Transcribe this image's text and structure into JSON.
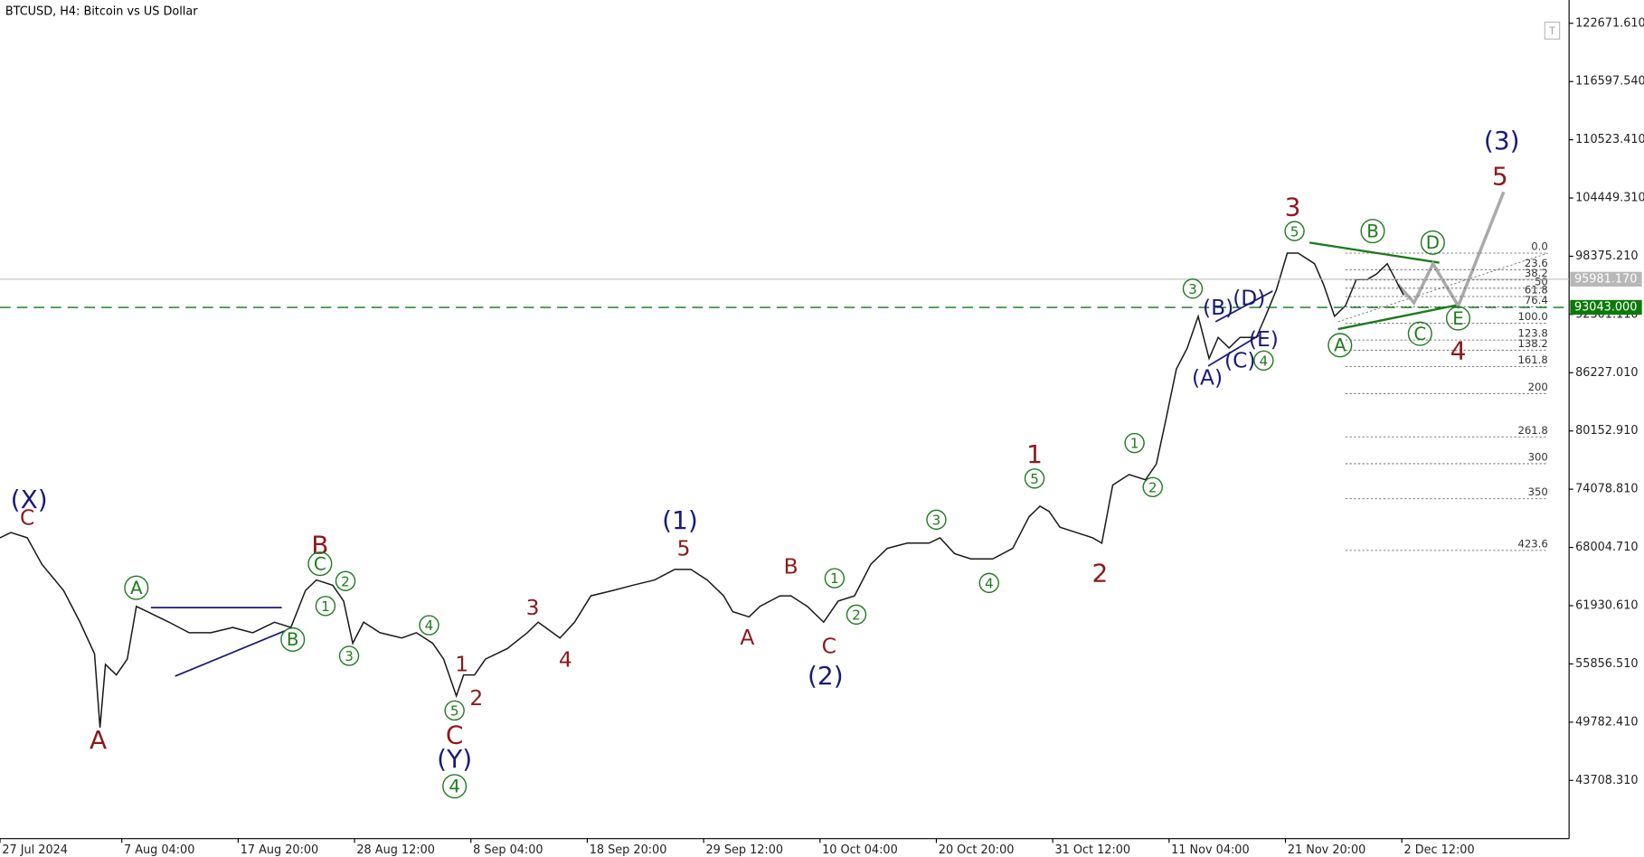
{
  "chart_data": {
    "type": "line",
    "title": "BTCUSD, H4:  Bitcoin vs US Dollar",
    "x": [
      0,
      6,
      15,
      23,
      35,
      44,
      52,
      55,
      58,
      64,
      70,
      75,
      81,
      93,
      104,
      116,
      128,
      139,
      151,
      160,
      168,
      174,
      183,
      189,
      194,
      200,
      209,
      221,
      229,
      238,
      244,
      251,
      255,
      261,
      267,
      279,
      290,
      296,
      308,
      316,
      325,
      337,
      348,
      360,
      371,
      380,
      389,
      398,
      403,
      412,
      418,
      429,
      435,
      444,
      453,
      461,
      470,
      479,
      488,
      499,
      511,
      517,
      525,
      534,
      546,
      557,
      566,
      572,
      577,
      583,
      592,
      601,
      606,
      612,
      621,
      630,
      636,
      641,
      647,
      653,
      659,
      665,
      670,
      676,
      682,
      691,
      696,
      702,
      708,
      714,
      723,
      728,
      734,
      740,
      746,
      752,
      757,
      763,
      769,
      772
    ],
    "series": [
      {
        "color": "#1a1a1a",
        "values": [
          69010,
          69560,
          69010,
          66260,
          63510,
          60210,
          56910,
          49210,
          55810,
          54710,
          56360,
          61860,
          61310,
          60210,
          59110,
          59110,
          59660,
          59110,
          60210,
          59660,
          63510,
          64610,
          64060,
          62410,
          58010,
          60210,
          59110,
          58560,
          59110,
          58010,
          56360,
          52510,
          54710,
          54710,
          56360,
          57460,
          59110,
          60210,
          58560,
          60210,
          62960,
          63510,
          64060,
          64610,
          65710,
          65710,
          64610,
          62960,
          61310,
          60760,
          61860,
          62960,
          62960,
          61860,
          60210,
          62410,
          62960,
          66260,
          67910,
          68460,
          68460,
          69010,
          67360,
          66810,
          66810,
          67910,
          71210,
          72310,
          71760,
          70110,
          69560,
          69010,
          68460,
          74510,
          75610,
          75060,
          76710,
          81110,
          86610,
          88810,
          92110,
          87710,
          89910,
          88810,
          89910,
          89910,
          92110,
          94860,
          98700,
          98700,
          97600,
          95410,
          92110,
          93210,
          95960,
          95960,
          96510,
          97600,
          95410,
          94310
        ]
      }
    ],
    "xlim": [
      0,
      863
    ],
    "ylim": [
      37636,
      125100
    ],
    "xticks": [
      {
        "value": 0,
        "label": "27 Jul 2024"
      },
      {
        "value": 67,
        "label": "7 Aug 04:00"
      },
      {
        "value": 131,
        "label": "17 Aug 20:00"
      },
      {
        "value": 195,
        "label": "28 Aug 12:00"
      },
      {
        "value": 259,
        "label": "8 Sep 04:00"
      },
      {
        "value": 323,
        "label": "18 Sep 20:00"
      },
      {
        "value": 387,
        "label": "29 Sep 12:00"
      },
      {
        "value": 451,
        "label": "10 Oct 04:00"
      },
      {
        "value": 515,
        "label": "20 Oct 20:00"
      },
      {
        "value": 579,
        "label": "31 Oct 12:00"
      },
      {
        "value": 643,
        "label": "11 Nov 04:00"
      },
      {
        "value": 707,
        "label": "21 Nov 20:00"
      },
      {
        "value": 771,
        "label": "2 Dec 12:00"
      }
    ],
    "yticks": [
      {
        "value": 122671.61,
        "label": "122671.610"
      },
      {
        "value": 116597.54,
        "label": "116597.540"
      },
      {
        "value": 110523.41,
        "label": "110523.410"
      },
      {
        "value": 104449.31,
        "label": "104449.310"
      },
      {
        "value": 98375.21,
        "label": "98375.210"
      },
      {
        "value": 92301.11,
        "label": "92301.110"
      },
      {
        "value": 86227.01,
        "label": "86227.010"
      },
      {
        "value": 80152.91,
        "label": "80152.910"
      },
      {
        "value": 74078.81,
        "label": "74078.810"
      },
      {
        "value": 68004.71,
        "label": "68004.710"
      },
      {
        "value": 61930.61,
        "label": "61930.610"
      },
      {
        "value": 55856.51,
        "label": "55856.510"
      },
      {
        "value": 49782.41,
        "label": "49782.410"
      },
      {
        "value": 43708.31,
        "label": "43708.310"
      }
    ],
    "price_lines": [
      {
        "value": 95981.17,
        "label": "95981.170",
        "color": "#b8b8b8",
        "style": "solid"
      },
      {
        "value": 93043,
        "label": "93043.000",
        "color": "#0b7a0b",
        "style": "dashed"
      }
    ],
    "fib_range": [
      98700,
      91380
    ],
    "fib_levels": [
      {
        "value": 0,
        "label": "0.0"
      },
      23.6,
      38.2,
      50,
      61.8,
      76.4,
      {
        "value": 100,
        "label": "100.0"
      },
      123.8,
      138.2,
      161.8,
      200,
      261.8,
      300,
      350,
      423.6
    ],
    "annotations": [
      {
        "text": "(X)",
        "x": 16,
        "y": 73000,
        "color": "#1a1a7a",
        "style": "big"
      },
      {
        "text": "C",
        "x": 15,
        "y": 71100,
        "color": "#8b1a1a",
        "style": "normal"
      },
      {
        "text": "A",
        "x": 54,
        "y": 47900,
        "color": "#8b1a1a",
        "style": "big"
      },
      {
        "text": "A",
        "x": 75,
        "y": 63800,
        "color": "#1f7a1f",
        "style": "circle"
      },
      {
        "text": "B",
        "x": 161,
        "y": 58400,
        "color": "#1f7a1f",
        "style": "circle"
      },
      {
        "text": "B",
        "x": 176,
        "y": 68200,
        "color": "#8b1a1a",
        "style": "big"
      },
      {
        "text": "C",
        "x": 176,
        "y": 66300,
        "color": "#1f7a1f",
        "style": "circle"
      },
      {
        "text": "2",
        "x": 190,
        "y": 64500,
        "color": "#1f7a1f",
        "style": "small"
      },
      {
        "text": "1",
        "x": 179,
        "y": 61900,
        "color": "#1f7a1f",
        "style": "small"
      },
      {
        "text": "3",
        "x": 192,
        "y": 56700,
        "color": "#1f7a1f",
        "style": "small"
      },
      {
        "text": "4",
        "x": 236,
        "y": 59900,
        "color": "#1f7a1f",
        "style": "small"
      },
      {
        "text": "1",
        "x": 254,
        "y": 55800,
        "color": "#8b1a1a",
        "style": "normal"
      },
      {
        "text": "2",
        "x": 262,
        "y": 52300,
        "color": "#8b1a1a",
        "style": "normal"
      },
      {
        "text": "5",
        "x": 250,
        "y": 51000,
        "color": "#1f7a1f",
        "style": "small"
      },
      {
        "text": "C",
        "x": 250,
        "y": 48400,
        "color": "#8b1a1a",
        "style": "big"
      },
      {
        "text": "(Y)",
        "x": 250,
        "y": 45900,
        "color": "#1a1a7a",
        "style": "big"
      },
      {
        "text": "4",
        "x": 250,
        "y": 43100,
        "color": "#1f7a1f",
        "style": "circle"
      },
      {
        "text": "3",
        "x": 293,
        "y": 61700,
        "color": "#8b1a1a",
        "style": "normal"
      },
      {
        "text": "4",
        "x": 311,
        "y": 56300,
        "color": "#8b1a1a",
        "style": "normal"
      },
      {
        "text": "(1)",
        "x": 374,
        "y": 70800,
        "color": "#1a1a7a",
        "style": "big"
      },
      {
        "text": "5",
        "x": 376,
        "y": 67900,
        "color": "#8b1a1a",
        "style": "normal"
      },
      {
        "text": "A",
        "x": 411,
        "y": 58600,
        "color": "#8b1a1a",
        "style": "normal"
      },
      {
        "text": "B",
        "x": 435,
        "y": 66000,
        "color": "#8b1a1a",
        "style": "normal"
      },
      {
        "text": "C",
        "x": 456,
        "y": 57700,
        "color": "#8b1a1a",
        "style": "normal"
      },
      {
        "text": "(2)",
        "x": 454,
        "y": 54600,
        "color": "#1a1a7a",
        "style": "big"
      },
      {
        "text": "1",
        "x": 459,
        "y": 64800,
        "color": "#1f7a1f",
        "style": "small"
      },
      {
        "text": "2",
        "x": 471,
        "y": 61000,
        "color": "#1f7a1f",
        "style": "small"
      },
      {
        "text": "3",
        "x": 515,
        "y": 70900,
        "color": "#1f7a1f",
        "style": "small"
      },
      {
        "text": "4",
        "x": 544,
        "y": 64300,
        "color": "#1f7a1f",
        "style": "small"
      },
      {
        "text": "5",
        "x": 569,
        "y": 75200,
        "color": "#1f7a1f",
        "style": "small"
      },
      {
        "text": "1",
        "x": 569,
        "y": 77700,
        "color": "#8b1a1a",
        "style": "big"
      },
      {
        "text": "2",
        "x": 605,
        "y": 65300,
        "color": "#8b1a1a",
        "style": "big"
      },
      {
        "text": "1",
        "x": 624,
        "y": 78900,
        "color": "#1f7a1f",
        "style": "small"
      },
      {
        "text": "2",
        "x": 634,
        "y": 74300,
        "color": "#1f7a1f",
        "style": "small"
      },
      {
        "text": "3",
        "x": 656,
        "y": 95000,
        "color": "#1f7a1f",
        "style": "small"
      },
      {
        "text": "(A)",
        "x": 664,
        "y": 85700,
        "color": "#1a1a7a",
        "style": "normal"
      },
      {
        "text": "(B)",
        "x": 670,
        "y": 93000,
        "color": "#1a1a7a",
        "style": "normal"
      },
      {
        "text": "(D)",
        "x": 687,
        "y": 94000,
        "color": "#1a1a7a",
        "style": "normal"
      },
      {
        "text": "(C)",
        "x": 682,
        "y": 87500,
        "color": "#1a1a7a",
        "style": "normal"
      },
      {
        "text": "(E)",
        "x": 695,
        "y": 89700,
        "color": "#1a1a7a",
        "style": "normal"
      },
      {
        "text": "4",
        "x": 695,
        "y": 87500,
        "color": "#1f7a1f",
        "style": "small"
      },
      {
        "text": "3",
        "x": 711,
        "y": 103500,
        "color": "#8b1a1a",
        "style": "big"
      },
      {
        "text": "5",
        "x": 712,
        "y": 101000,
        "color": "#1f7a1f",
        "style": "small"
      },
      {
        "text": "A",
        "x": 737,
        "y": 89100,
        "color": "#1f7a1f",
        "style": "circle"
      },
      {
        "text": "B",
        "x": 755,
        "y": 101000,
        "color": "#1f7a1f",
        "style": "circle"
      },
      {
        "text": "D",
        "x": 788,
        "y": 99800,
        "color": "#1f7a1f",
        "style": "circle"
      },
      {
        "text": "C",
        "x": 781,
        "y": 90300,
        "color": "#1f7a1f",
        "style": "circle"
      },
      {
        "text": "E",
        "x": 802,
        "y": 91900,
        "color": "#1f7a1f",
        "style": "circle"
      },
      {
        "text": "4",
        "x": 802,
        "y": 88500,
        "color": "#8b1a1a",
        "style": "big"
      },
      {
        "text": "(3)",
        "x": 826,
        "y": 110400,
        "color": "#1a1a7a",
        "style": "big"
      },
      {
        "text": "5",
        "x": 825,
        "y": 106700,
        "color": "#8b1a1a",
        "style": "big"
      }
    ]
  }
}
